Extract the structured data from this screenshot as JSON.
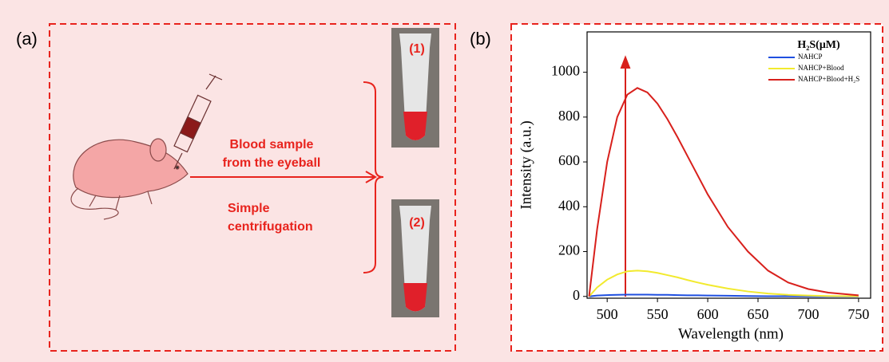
{
  "panel_a": {
    "label": "(a)",
    "arrow_text_top": [
      "Blood sample",
      "from the eyeball"
    ],
    "arrow_text_bottom": [
      "Simple",
      "centrifugation"
    ],
    "tubes": [
      "(1)",
      "(2)"
    ]
  },
  "panel_b_label": "(b)",
  "chart_data": {
    "type": "line",
    "xlabel": "Wavelength (nm)",
    "ylabel": "Intensity (a.u.)",
    "legend_title": "H₂S(μM)",
    "legend": "upper-right",
    "x": [
      482,
      490,
      500,
      510,
      520,
      530,
      540,
      550,
      560,
      570,
      580,
      590,
      600,
      620,
      640,
      660,
      680,
      700,
      720,
      750
    ],
    "series": [
      {
        "name": "NAHCP",
        "color": "#1f4fe0",
        "values": [
          0,
          4,
          6,
          7,
          8,
          8,
          8,
          7,
          7,
          6,
          5,
          5,
          4,
          3,
          2,
          1,
          1,
          0,
          0,
          0
        ]
      },
      {
        "name": "NAHCP+Blood",
        "color": "#f2ea2e",
        "values": [
          0,
          40,
          75,
          98,
          112,
          115,
          112,
          105,
          95,
          85,
          73,
          62,
          52,
          35,
          22,
          13,
          7,
          4,
          2,
          1
        ]
      },
      {
        "name": "NAHCP+Blood+H₂S",
        "color": "#d8201c",
        "values": [
          0,
          300,
          600,
          800,
          900,
          930,
          910,
          860,
          790,
          710,
          625,
          540,
          455,
          310,
          200,
          115,
          62,
          33,
          17,
          5
        ]
      }
    ],
    "xlim": [
      480,
      762
    ],
    "ylim": [
      -8,
      1180
    ],
    "xticks": [
      500,
      550,
      600,
      650,
      700,
      750
    ],
    "yticks": [
      0,
      200,
      400,
      600,
      800,
      1000
    ]
  }
}
